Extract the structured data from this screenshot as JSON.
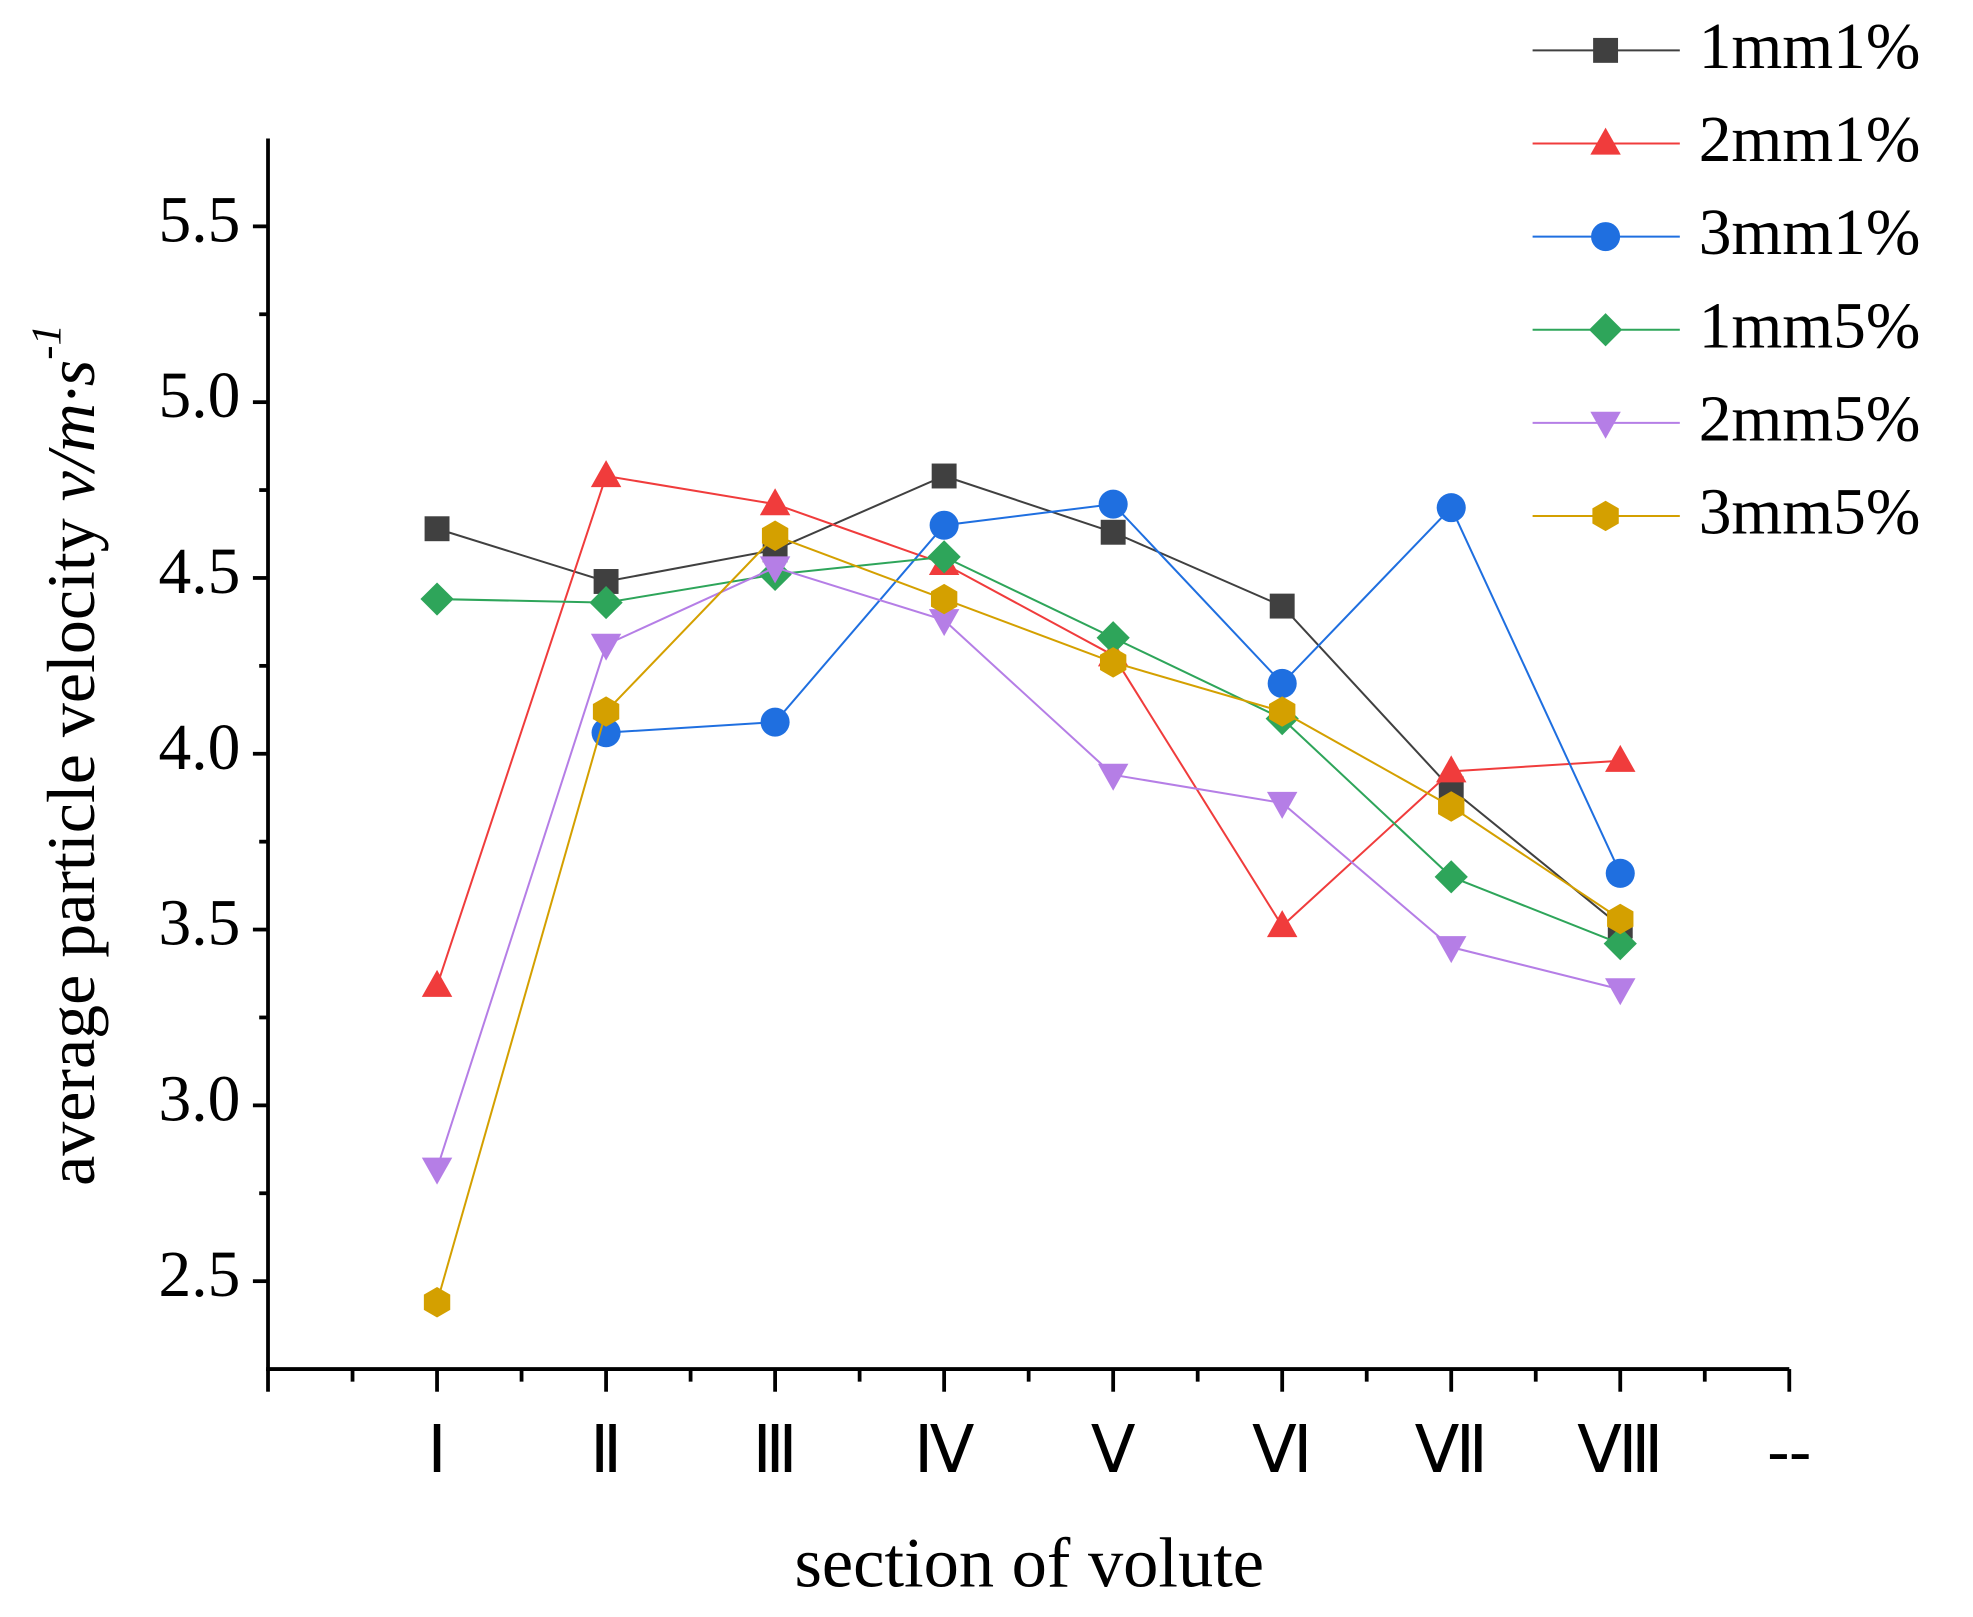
{
  "chart_data": {
    "type": "line",
    "xlabel": "section of volute",
    "ylabel": {
      "text": "average particle velocity",
      "unit": "v/m·s",
      "exponent": "-1"
    },
    "categories": [
      null,
      "Ⅰ",
      "Ⅱ",
      "Ⅲ",
      "Ⅳ",
      "Ⅴ",
      "Ⅵ",
      "Ⅶ",
      "Ⅷ",
      "--"
    ],
    "ylim": [
      2.25,
      5.75
    ],
    "yticks": [
      {
        "value": 2.5,
        "label": "2.5"
      },
      {
        "value": 3,
        "label": "3.0"
      },
      {
        "value": 3.5,
        "label": "3.5"
      },
      {
        "value": 4,
        "label": "4.0"
      },
      {
        "value": 4.5,
        "label": "4.5"
      },
      {
        "value": 5,
        "label": "5.0"
      },
      {
        "value": 5.5,
        "label": "5.5"
      }
    ],
    "legend": "top-right",
    "series": [
      {
        "name": "1mm1%",
        "color": "#404040",
        "marker": "square",
        "values": [
          null,
          4.64,
          4.49,
          4.58,
          4.79,
          4.63,
          4.42,
          3.9,
          3.51,
          null
        ]
      },
      {
        "name": "2mm1%",
        "color": "#f03c3c",
        "marker": "triangle-up",
        "values": [
          null,
          3.34,
          4.79,
          4.71,
          4.54,
          4.28,
          3.51,
          3.95,
          3.98,
          null
        ]
      },
      {
        "name": "3mm1%",
        "color": "#1f6fe0",
        "marker": "circle",
        "values": [
          null,
          null,
          4.06,
          4.09,
          4.65,
          4.71,
          4.2,
          4.7,
          3.66,
          null
        ]
      },
      {
        "name": "1mm5%",
        "color": "#2ea55a",
        "marker": "diamond",
        "values": [
          null,
          4.44,
          4.43,
          4.51,
          4.56,
          4.33,
          4.1,
          3.65,
          3.46,
          null
        ]
      },
      {
        "name": "2mm5%",
        "color": "#b57ee6",
        "marker": "triangle-down",
        "values": [
          null,
          2.82,
          4.31,
          4.53,
          4.38,
          3.94,
          3.86,
          3.45,
          3.33,
          null
        ]
      },
      {
        "name": "3mm5%",
        "color": "#d4a000",
        "marker": "hexagon",
        "values": [
          null,
          2.44,
          4.12,
          4.62,
          4.44,
          4.26,
          4.12,
          3.85,
          3.53,
          null
        ]
      }
    ]
  }
}
